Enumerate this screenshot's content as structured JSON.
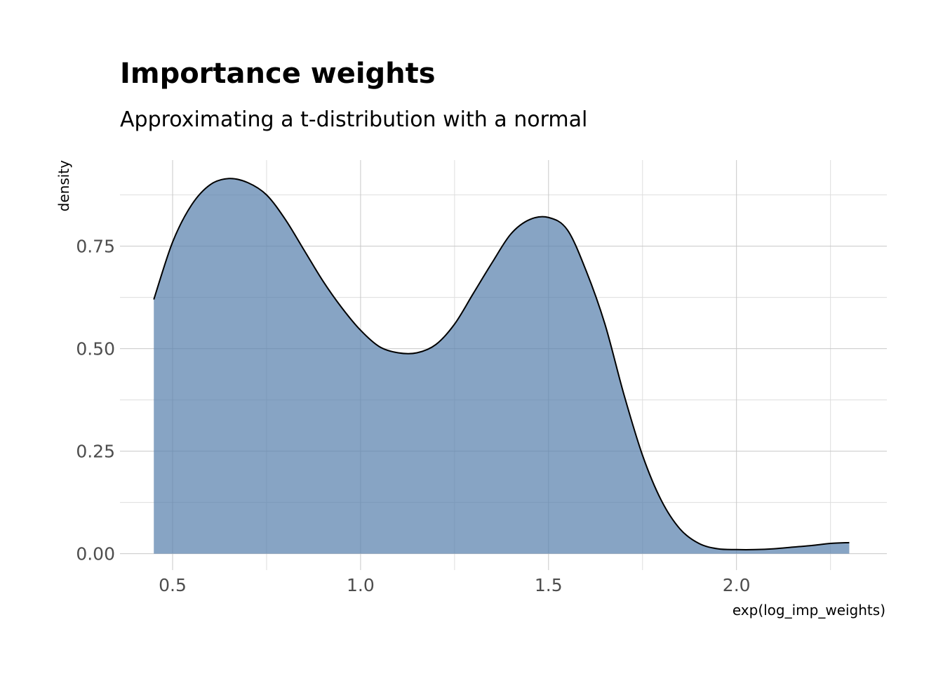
{
  "chart_data": {
    "type": "area",
    "title": "Importance weights",
    "subtitle": "Approximating a t-distribution with a normal",
    "xlabel": "exp(log_imp_weights)",
    "ylabel": "density",
    "xlim": [
      0.36,
      2.4
    ],
    "ylim": [
      -0.04,
      0.96
    ],
    "x_ticks": [
      {
        "value": 0.5,
        "label": "0.5"
      },
      {
        "value": 1.0,
        "label": "1.0"
      },
      {
        "value": 1.5,
        "label": "1.5"
      },
      {
        "value": 2.0,
        "label": "2.0"
      }
    ],
    "x_minor": [
      0.75,
      1.25,
      1.75,
      2.25
    ],
    "y_ticks": [
      {
        "value": 0.0,
        "label": "0.00"
      },
      {
        "value": 0.25,
        "label": "0.25"
      },
      {
        "value": 0.5,
        "label": "0.50"
      },
      {
        "value": 0.75,
        "label": "0.75"
      }
    ],
    "y_minor": [
      0.125,
      0.375,
      0.625,
      0.875
    ],
    "fill_color": "#5a82ae",
    "line_color": "#000000",
    "grid": true,
    "series": [
      {
        "x": [
          0.45,
          0.5,
          0.55,
          0.6,
          0.65,
          0.7,
          0.75,
          0.8,
          0.85,
          0.9,
          0.95,
          1.0,
          1.05,
          1.1,
          1.15,
          1.2,
          1.25,
          1.3,
          1.35,
          1.4,
          1.45,
          1.5,
          1.55,
          1.6,
          1.65,
          1.7,
          1.75,
          1.8,
          1.85,
          1.9,
          1.95,
          2.0,
          2.05,
          2.1,
          2.15,
          2.2,
          2.25,
          2.3
        ],
        "y": [
          0.62,
          0.76,
          0.85,
          0.9,
          0.915,
          0.905,
          0.875,
          0.815,
          0.74,
          0.665,
          0.6,
          0.545,
          0.505,
          0.49,
          0.49,
          0.51,
          0.56,
          0.635,
          0.71,
          0.78,
          0.815,
          0.82,
          0.79,
          0.69,
          0.56,
          0.39,
          0.24,
          0.13,
          0.06,
          0.025,
          0.012,
          0.01,
          0.01,
          0.012,
          0.016,
          0.02,
          0.025,
          0.027
        ]
      }
    ]
  }
}
